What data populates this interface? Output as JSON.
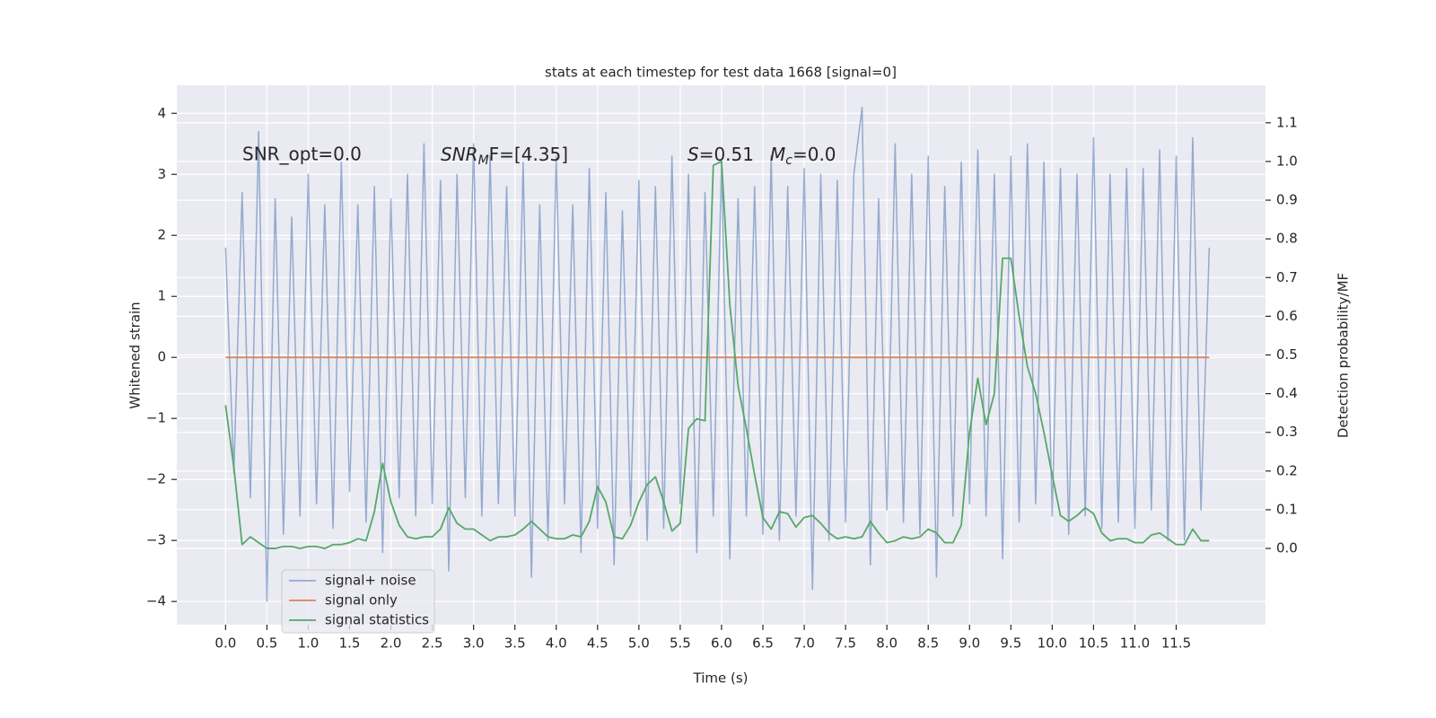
{
  "chart_data": {
    "type": "line",
    "title": "stats at each timestep for test data 1668 [signal=0]",
    "xlabel": "Time (s)",
    "ylabel": "Whitened strain",
    "y2label": "Detection probability/MF",
    "annotations": [
      {
        "text": "SNR_opt=0.0"
      },
      {
        "main": "SNR",
        "sub": "M",
        "rest": "F=[4.35]"
      },
      {
        "main": "S",
        "rest": "=0.51"
      },
      {
        "main": "M",
        "sub": "c",
        "rest": "=0.0"
      }
    ],
    "x": [
      0,
      0.1,
      0.2,
      0.3,
      0.4,
      0.5,
      0.6,
      0.7,
      0.8,
      0.9,
      1,
      1.1,
      1.2,
      1.3,
      1.4,
      1.5,
      1.6,
      1.7,
      1.8,
      1.9,
      2,
      2.1,
      2.2,
      2.3,
      2.4,
      2.5,
      2.6,
      2.7,
      2.8,
      2.9,
      3,
      3.1,
      3.2,
      3.3,
      3.4,
      3.5,
      3.6,
      3.7,
      3.8,
      3.9,
      4,
      4.1,
      4.2,
      4.3,
      4.4,
      4.5,
      4.6,
      4.7,
      4.8,
      4.9,
      5,
      5.1,
      5.2,
      5.3,
      5.4,
      5.5,
      5.6,
      5.7,
      5.8,
      5.9,
      6,
      6.1,
      6.2,
      6.3,
      6.4,
      6.5,
      6.6,
      6.7,
      6.8,
      6.9,
      7,
      7.1,
      7.2,
      7.3,
      7.4,
      7.5,
      7.6,
      7.7,
      7.8,
      7.9,
      8,
      8.1,
      8.2,
      8.3,
      8.4,
      8.5,
      8.6,
      8.7,
      8.8,
      8.9,
      9,
      9.1,
      9.2,
      9.3,
      9.4,
      9.5,
      9.6,
      9.7,
      9.8,
      9.9,
      10,
      10.1,
      10.2,
      10.3,
      10.4,
      10.5,
      10.6,
      10.7,
      10.8,
      10.9,
      11,
      11.1,
      11.2,
      11.3,
      11.4,
      11.5,
      11.6,
      11.7,
      11.8,
      11.9
    ],
    "series": [
      {
        "name": "signal+ noise",
        "color": "#4c72b0",
        "values": [
          1.8,
          -1.9,
          2.7,
          -2.3,
          3.7,
          -4.0,
          2.6,
          -2.9,
          2.3,
          -2.6,
          3.0,
          -2.4,
          2.5,
          -2.8,
          3.2,
          -2.2,
          2.5,
          -2.7,
          2.8,
          -3.2,
          2.6,
          -2.3,
          3.0,
          -2.6,
          3.5,
          -2.4,
          2.9,
          -3.5,
          3.0,
          -2.3,
          3.5,
          -2.6,
          3.3,
          -2.4,
          2.8,
          -2.6,
          3.2,
          -3.6,
          2.5,
          -3.0,
          3.3,
          -2.4,
          2.5,
          -3.2,
          3.1,
          -2.8,
          2.7,
          -3.4,
          2.4,
          -2.6,
          2.9,
          -3.0,
          2.8,
          -2.8,
          3.3,
          -2.4,
          3.0,
          -3.2,
          2.7,
          -2.6,
          3.2,
          -3.3,
          2.6,
          -2.6,
          2.8,
          -2.9,
          3.3,
          -3.0,
          2.8,
          -2.6,
          3.1,
          -3.8,
          3.0,
          -3.0,
          2.9,
          -2.7,
          3.0,
          4.1,
          -3.4,
          2.6,
          -2.5,
          3.5,
          -2.7,
          3.0,
          -2.9,
          3.3,
          -3.6,
          2.8,
          -2.6,
          3.2,
          -2.4,
          3.4,
          -2.6,
          3.0,
          -3.3,
          3.3,
          -2.7,
          3.5,
          -2.4,
          3.2,
          -2.6,
          3.1,
          -2.9,
          3.0,
          -2.6,
          3.6,
          -2.8,
          3.0,
          -2.7,
          3.1,
          -2.8,
          3.1,
          -2.5,
          3.4,
          -3.0,
          3.3,
          -3.0,
          3.6,
          -2.5,
          1.8
        ]
      },
      {
        "name": "signal only",
        "color": "#dd8452",
        "values": [
          0,
          0,
          0,
          0,
          0,
          0,
          0,
          0,
          0,
          0,
          0,
          0,
          0,
          0,
          0,
          0,
          0,
          0,
          0,
          0,
          0,
          0,
          0,
          0,
          0,
          0,
          0,
          0,
          0,
          0,
          0,
          0,
          0,
          0,
          0,
          0,
          0,
          0,
          0,
          0,
          0,
          0,
          0,
          0,
          0,
          0,
          0,
          0,
          0,
          0,
          0,
          0,
          0,
          0,
          0,
          0,
          0,
          0,
          0,
          0,
          0,
          0,
          0,
          0,
          0,
          0,
          0,
          0,
          0,
          0,
          0,
          0,
          0,
          0,
          0,
          0,
          0,
          0,
          0,
          0,
          0,
          0,
          0,
          0,
          0,
          0,
          0,
          0,
          0,
          0,
          0,
          0,
          0,
          0,
          0,
          0,
          0,
          0,
          0,
          0,
          0,
          0,
          0,
          0,
          0,
          0,
          0,
          0,
          0,
          0,
          0,
          0,
          0,
          0,
          0,
          0,
          0,
          0,
          0,
          0
        ]
      },
      {
        "name": "signal statistics",
        "color": "#55a868",
        "axis": "y2",
        "values": [
          0.37,
          0.21,
          0.01,
          0.03,
          0.015,
          0.0,
          0.0,
          0.005,
          0.005,
          0.0,
          0.005,
          0.005,
          0.0,
          0.01,
          0.01,
          0.015,
          0.025,
          0.02,
          0.095,
          0.22,
          0.12,
          0.06,
          0.03,
          0.025,
          0.03,
          0.03,
          0.05,
          0.105,
          0.065,
          0.05,
          0.05,
          0.035,
          0.02,
          0.03,
          0.03,
          0.035,
          0.05,
          0.07,
          0.05,
          0.03,
          0.025,
          0.025,
          0.035,
          0.03,
          0.07,
          0.16,
          0.12,
          0.03,
          0.025,
          0.06,
          0.12,
          0.165,
          0.185,
          0.12,
          0.045,
          0.065,
          0.31,
          0.335,
          0.33,
          0.99,
          1.0,
          0.63,
          0.42,
          0.31,
          0.19,
          0.08,
          0.05,
          0.095,
          0.09,
          0.055,
          0.08,
          0.085,
          0.065,
          0.04,
          0.025,
          0.03,
          0.025,
          0.03,
          0.07,
          0.04,
          0.015,
          0.02,
          0.03,
          0.025,
          0.03,
          0.05,
          0.04,
          0.015,
          0.015,
          0.06,
          0.3,
          0.44,
          0.32,
          0.4,
          0.75,
          0.75,
          0.6,
          0.47,
          0.4,
          0.3,
          0.19,
          0.085,
          0.07,
          0.085,
          0.105,
          0.09,
          0.04,
          0.02,
          0.025,
          0.025,
          0.015,
          0.015,
          0.035,
          0.04,
          0.025,
          0.01,
          0.01,
          0.05,
          0.02,
          0.02
        ]
      }
    ],
    "xlim": [
      -0.59,
      12.58
    ],
    "xticks": [
      {
        "value": 0,
        "label": "0.0"
      },
      {
        "value": 0.5,
        "label": "0.5"
      },
      {
        "value": 1,
        "label": "1.0"
      },
      {
        "value": 1.5,
        "label": "1.5"
      },
      {
        "value": 2,
        "label": "2.0"
      },
      {
        "value": 2.5,
        "label": "2.5"
      },
      {
        "value": 3,
        "label": "3.0"
      },
      {
        "value": 3.5,
        "label": "3.5"
      },
      {
        "value": 4,
        "label": "4.0"
      },
      {
        "value": 4.5,
        "label": "4.5"
      },
      {
        "value": 5,
        "label": "5.0"
      },
      {
        "value": 5.5,
        "label": "5.5"
      },
      {
        "value": 6,
        "label": "6.0"
      },
      {
        "value": 6.5,
        "label": "6.5"
      },
      {
        "value": 7,
        "label": "7.0"
      },
      {
        "value": 7.5,
        "label": "7.5"
      },
      {
        "value": 8,
        "label": "8.0"
      },
      {
        "value": 8.5,
        "label": "8.5"
      },
      {
        "value": 9,
        "label": "9.0"
      },
      {
        "value": 9.5,
        "label": "9.5"
      },
      {
        "value": 10,
        "label": "10.0"
      },
      {
        "value": 10.5,
        "label": "10.5"
      },
      {
        "value": 11,
        "label": "11.0"
      },
      {
        "value": 11.5,
        "label": "11.5"
      }
    ],
    "ylim": [
      -4.38,
      4.46
    ],
    "yticks": [
      {
        "value": -4,
        "label": "−4"
      },
      {
        "value": -3,
        "label": "−3"
      },
      {
        "value": -2,
        "label": "−2"
      },
      {
        "value": -1,
        "label": "−1"
      },
      0,
      1,
      2,
      3,
      4
    ],
    "y2lim": [
      -0.197,
      1.197
    ],
    "y2ticks": [
      {
        "value": 0,
        "label": "0.0"
      },
      {
        "value": 0.1,
        "label": "0.1"
      },
      {
        "value": 0.2,
        "label": "0.2"
      },
      {
        "value": 0.3,
        "label": "0.3"
      },
      {
        "value": 0.4,
        "label": "0.4"
      },
      {
        "value": 0.5,
        "label": "0.5"
      },
      {
        "value": 0.6,
        "label": "0.6"
      },
      {
        "value": 0.7,
        "label": "0.7"
      },
      {
        "value": 0.8,
        "label": "0.8"
      },
      {
        "value": 0.9,
        "label": "0.9"
      },
      {
        "value": 1,
        "label": "1.0"
      },
      {
        "value": 1.1,
        "label": "1.1"
      }
    ],
    "grid": true,
    "legend": "lower left"
  }
}
